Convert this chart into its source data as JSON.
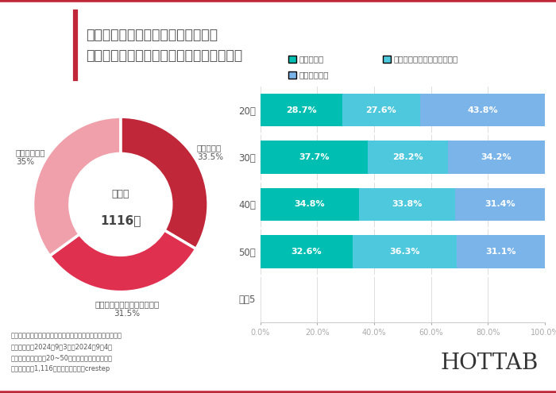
{
  "title_line1": "多くのシャンプーやボディソープが",
  "title_line2": "化学洗剤であることを知っていましたか？",
  "donut": {
    "values": [
      33.5,
      31.5,
      35.0
    ],
    "colors": [
      "#c0283a",
      "#e03050",
      "#f0a0aa"
    ],
    "center_text1": "回答数",
    "center_text2": "1116人",
    "label_shittei": "知っていた\n33.5%",
    "label_nantoku": "なんとなく聞いたことがある\n31.5%",
    "label_shiranai": "知らなかった\n35%"
  },
  "bar": {
    "categories": [
      "20代",
      "30代",
      "40代",
      "50代",
      "系列5"
    ],
    "series1_label": "知っていた",
    "series2_label": "なんとなく聞いたことがある",
    "series3_label": "知らなかった",
    "series1_color": "#00bfb2",
    "series2_color": "#4ec8dc",
    "series3_color": "#7ab4e8",
    "series1": [
      28.7,
      37.7,
      34.8,
      32.6,
      0
    ],
    "series2": [
      27.6,
      28.2,
      33.8,
      36.3,
      0
    ],
    "series3": [
      43.8,
      34.2,
      31.4,
      31.1,
      0
    ]
  },
  "footnote_lines": [
    "・調査概要：フェムケア・デリケートゾーンケアに関する調査",
    "・調査期間：2024年9月3日～2024年9月4日",
    "・調査対象：全国　20~50代女性（調査モニター）",
    "・調査人数：1,116名　・調査委託：crestep"
  ],
  "brand": "HOTTAB",
  "bg_color": "#ffffff",
  "border_color": "#c0283a",
  "title_color": "#555555"
}
